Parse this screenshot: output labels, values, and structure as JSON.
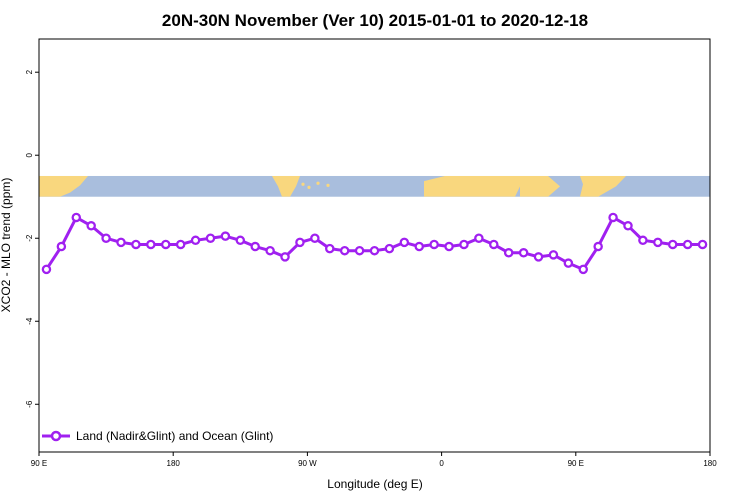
{
  "chart_data": {
    "type": "line",
    "title": "20N-30N November (Ver 10)   2015-01-01 to 2020-12-18",
    "xlabel": "Longitude (deg E)",
    "ylabel": "XCO2 - MLO trend (ppm)",
    "xlim": [
      90,
      540
    ],
    "ylim": [
      -7.15,
      2.8
    ],
    "x_ticks": [
      {
        "value": 90,
        "label": "90 E"
      },
      {
        "value": 180,
        "label": "180"
      },
      {
        "value": 270,
        "label": "90 W"
      },
      {
        "value": 360,
        "label": "0"
      },
      {
        "value": 450,
        "label": "90 E"
      },
      {
        "value": 540,
        "label": "180"
      }
    ],
    "y_ticks": [
      {
        "value": 2,
        "label": "2"
      },
      {
        "value": 0,
        "label": "0"
      },
      {
        "value": -2,
        "label": "-2"
      },
      {
        "value": -4,
        "label": "-4"
      },
      {
        "value": -6,
        "label": "-6"
      }
    ],
    "map_band": {
      "ymin": -1.0,
      "ymax": -0.5,
      "ocean_color": "#a9bedd",
      "land_color": "#f9d77e"
    },
    "series": [
      {
        "name": "Land (Nadir&Glint) and Ocean (Glint)",
        "color": "#a020f0",
        "x": [
          95,
          105,
          115,
          125,
          135,
          145,
          155,
          165,
          175,
          185,
          195,
          205,
          215,
          225,
          235,
          245,
          255,
          265,
          275,
          285,
          295,
          305,
          315,
          325,
          335,
          345,
          355,
          365,
          375,
          385,
          395,
          405,
          415,
          425,
          435,
          445,
          455,
          465,
          475,
          485,
          495,
          505,
          515,
          525,
          535
        ],
        "y": [
          -2.75,
          -2.2,
          -1.5,
          -1.7,
          -2.0,
          -2.1,
          -2.15,
          -2.15,
          -2.15,
          -2.15,
          -2.05,
          -2.0,
          -1.95,
          -2.05,
          -2.2,
          -2.3,
          -2.45,
          -2.1,
          -2.0,
          -2.25,
          -2.3,
          -2.3,
          -2.3,
          -2.25,
          -2.1,
          -2.2,
          -2.15,
          -2.2,
          -2.15,
          -2.0,
          -2.15,
          -2.35,
          -2.35,
          -2.45,
          -2.4,
          -2.6,
          -2.75,
          -2.2,
          -1.5,
          -1.7,
          -2.05,
          -2.1,
          -2.15,
          -2.15,
          -2.15
        ]
      }
    ],
    "legend_position": "bottom-left"
  }
}
